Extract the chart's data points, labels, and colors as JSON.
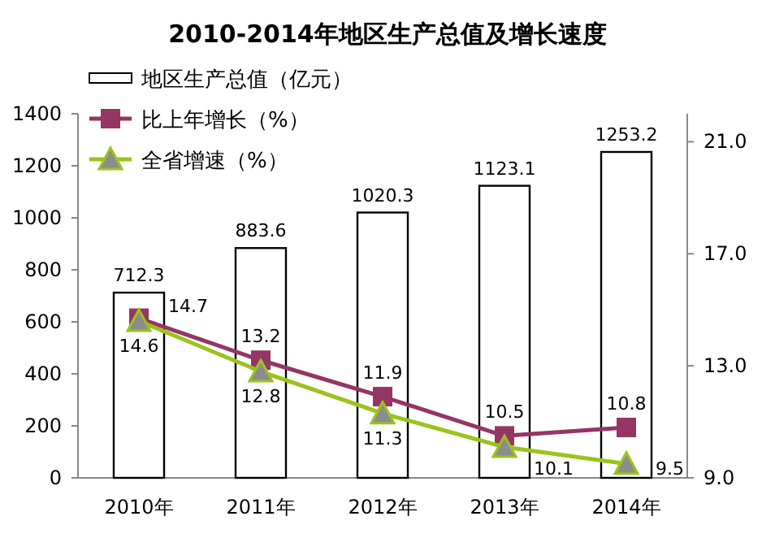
{
  "chart_data": {
    "type": "bar",
    "title": "2010-2014年地区生产总值及增长速度",
    "categories": [
      "2010年",
      "2011年",
      "2012年",
      "2013年",
      "2014年"
    ],
    "series": [
      {
        "name": "地区生产总值（亿元）",
        "type": "bar",
        "color": "#ffffff",
        "values": [
          712.3,
          883.6,
          1020.3,
          1123.1,
          1253.2
        ]
      },
      {
        "name": "比上年增长（%）",
        "type": "line",
        "axis": "y2",
        "marker": "square",
        "color": "#953563",
        "values": [
          14.7,
          13.2,
          11.9,
          10.5,
          10.8
        ]
      },
      {
        "name": "全省增速（%）",
        "type": "line",
        "axis": "y2",
        "marker": "triangle",
        "color": "#9bc31c",
        "values": [
          14.6,
          12.8,
          11.3,
          10.1,
          9.5
        ]
      }
    ],
    "ylim": [
      0,
      1400
    ],
    "yticks": [
      0,
      200,
      400,
      600,
      800,
      1000,
      1200,
      1400
    ],
    "y2lim": [
      9,
      22
    ],
    "y2ticks": [
      {
        "value": 9,
        "label": "9.0"
      },
      {
        "value": 13,
        "label": "13.0"
      },
      {
        "value": 17,
        "label": "17.0"
      },
      {
        "value": 21,
        "label": "21.0"
      }
    ],
    "data_labels": true,
    "legend": "top left",
    "grid": false
  }
}
